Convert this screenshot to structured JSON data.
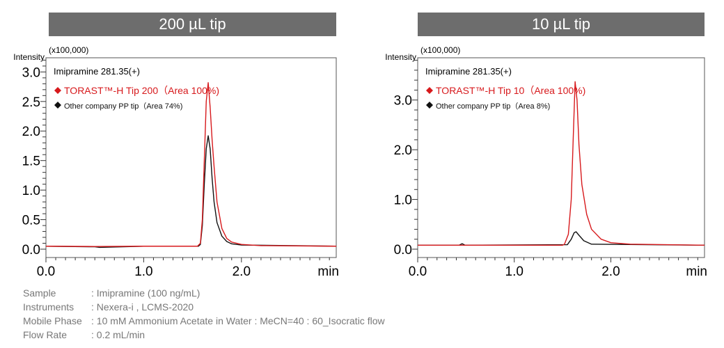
{
  "chart_data": [
    {
      "type": "line",
      "title": "200 µL tip",
      "ylabel": "Intensity",
      "yunit": "(x100,000)",
      "xlabel": "min",
      "xlim": [
        0,
        2.97
      ],
      "ylim": [
        0,
        3.24
      ],
      "yticks": [
        "0.0",
        "0.5",
        "1.0",
        "1.5",
        "2.0",
        "2.5",
        "3.0"
      ],
      "xticks": [
        "0.0",
        "1.0",
        "2.0"
      ],
      "annotation": "Imipramine 281.35(+)",
      "series": [
        {
          "name": "TORAST™-H Tip 200（Area 100%)",
          "color": "#d7191c",
          "points": [
            [
              0,
              0.05
            ],
            [
              0.5,
              0.045
            ],
            [
              1.0,
              0.05
            ],
            [
              1.55,
              0.05
            ],
            [
              1.58,
              0.1
            ],
            [
              1.6,
              0.5
            ],
            [
              1.62,
              1.5
            ],
            [
              1.64,
              2.5
            ],
            [
              1.66,
              2.82
            ],
            [
              1.68,
              2.4
            ],
            [
              1.7,
              1.85
            ],
            [
              1.72,
              1.4
            ],
            [
              1.75,
              0.8
            ],
            [
              1.8,
              0.35
            ],
            [
              1.85,
              0.18
            ],
            [
              1.9,
              0.12
            ],
            [
              2.0,
              0.08
            ],
            [
              2.2,
              0.06
            ],
            [
              2.97,
              0.05
            ]
          ]
        },
        {
          "name": "Other company PP tip（Area 74%)",
          "color": "#111111",
          "points": [
            [
              0,
              0.05
            ],
            [
              0.5,
              0.04
            ],
            [
              0.55,
              0.03
            ],
            [
              1.0,
              0.05
            ],
            [
              1.56,
              0.05
            ],
            [
              1.58,
              0.08
            ],
            [
              1.6,
              0.4
            ],
            [
              1.62,
              1.1
            ],
            [
              1.64,
              1.7
            ],
            [
              1.66,
              1.92
            ],
            [
              1.68,
              1.7
            ],
            [
              1.7,
              1.2
            ],
            [
              1.72,
              0.8
            ],
            [
              1.75,
              0.45
            ],
            [
              1.8,
              0.22
            ],
            [
              1.85,
              0.13
            ],
            [
              1.9,
              0.09
            ],
            [
              2.0,
              0.07
            ],
            [
              2.97,
              0.05
            ]
          ]
        }
      ]
    },
    {
      "type": "line",
      "title": "10 µL tip",
      "ylabel": "Intensity",
      "yunit": "(x100,000)",
      "xlabel": "min",
      "xlim": [
        0,
        2.97
      ],
      "ylim": [
        0,
        3.85
      ],
      "yticks": [
        "0.0",
        "1.0",
        "2.0",
        "3.0"
      ],
      "xticks": [
        "0.0",
        "1.0",
        "2.0"
      ],
      "annotation": "Imipramine 281.35(+)",
      "series": [
        {
          "name": "TORAST™-H Tip 10（Area 100%)",
          "color": "#d7191c",
          "points": [
            [
              0,
              0.08
            ],
            [
              1.5,
              0.08
            ],
            [
              1.52,
              0.1
            ],
            [
              1.56,
              0.3
            ],
            [
              1.59,
              1.0
            ],
            [
              1.61,
              2.2
            ],
            [
              1.63,
              3.37
            ],
            [
              1.65,
              3.0
            ],
            [
              1.67,
              2.1
            ],
            [
              1.7,
              1.3
            ],
            [
              1.75,
              0.7
            ],
            [
              1.8,
              0.4
            ],
            [
              1.9,
              0.2
            ],
            [
              2.0,
              0.13
            ],
            [
              2.2,
              0.1
            ],
            [
              2.97,
              0.08
            ]
          ]
        },
        {
          "name": "Other company PP tip（Area 8%)",
          "color": "#111111",
          "points": [
            [
              0,
              0.08
            ],
            [
              0.43,
              0.08
            ],
            [
              0.46,
              0.11
            ],
            [
              0.49,
              0.08
            ],
            [
              1.55,
              0.09
            ],
            [
              1.59,
              0.2
            ],
            [
              1.62,
              0.33
            ],
            [
              1.64,
              0.35
            ],
            [
              1.67,
              0.28
            ],
            [
              1.72,
              0.17
            ],
            [
              1.8,
              0.1
            ],
            [
              2.97,
              0.08
            ]
          ]
        }
      ]
    }
  ],
  "conditions": [
    {
      "label": "Sample",
      "value": ": Imipramine (100 ng/mL)"
    },
    {
      "label": "Instruments",
      "value": ": Nexera-i , LCMS-2020"
    },
    {
      "label": "Mobile Phase",
      "value": ": 10 mM Ammonium Acetate in Water : MeCN=40 : 60_Isocratic flow"
    },
    {
      "label": "Flow Rate",
      "value": ": 0.2 mL/min"
    }
  ]
}
